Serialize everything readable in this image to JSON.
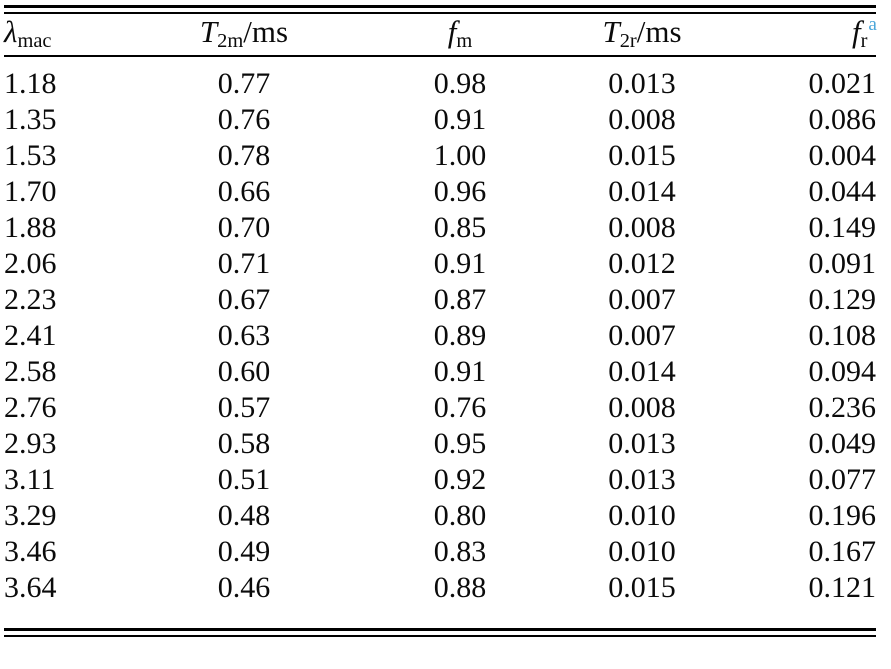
{
  "colors": {
    "text": "#0b0b0b",
    "rule": "#000000",
    "footnote_marker": "#4ba6d9"
  },
  "table": {
    "header": {
      "columns": [
        {
          "symbol": "λ",
          "subscript": "mac",
          "suffix": "",
          "superscript": ""
        },
        {
          "symbol": "T",
          "subscript": "2m",
          "suffix": "/ms",
          "superscript": ""
        },
        {
          "symbol": "f",
          "subscript": "m",
          "suffix": "",
          "superscript": ""
        },
        {
          "symbol": "T",
          "subscript": "2r",
          "suffix": "/ms",
          "superscript": ""
        },
        {
          "symbol": "f",
          "subscript": "r",
          "suffix": "",
          "superscript": "a"
        }
      ]
    },
    "rows": [
      [
        "1.18",
        "0.77",
        "0.98",
        "0.013",
        "0.021"
      ],
      [
        "1.35",
        "0.76",
        "0.91",
        "0.008",
        "0.086"
      ],
      [
        "1.53",
        "0.78",
        "1.00",
        "0.015",
        "0.004"
      ],
      [
        "1.70",
        "0.66",
        "0.96",
        "0.014",
        "0.044"
      ],
      [
        "1.88",
        "0.70",
        "0.85",
        "0.008",
        "0.149"
      ],
      [
        "2.06",
        "0.71",
        "0.91",
        "0.012",
        "0.091"
      ],
      [
        "2.23",
        "0.67",
        "0.87",
        "0.007",
        "0.129"
      ],
      [
        "2.41",
        "0.63",
        "0.89",
        "0.007",
        "0.108"
      ],
      [
        "2.58",
        "0.60",
        "0.91",
        "0.014",
        "0.094"
      ],
      [
        "2.76",
        "0.57",
        "0.76",
        "0.008",
        "0.236"
      ],
      [
        "2.93",
        "0.58",
        "0.95",
        "0.013",
        "0.049"
      ],
      [
        "3.11",
        "0.51",
        "0.92",
        "0.013",
        "0.077"
      ],
      [
        "3.29",
        "0.48",
        "0.80",
        "0.010",
        "0.196"
      ],
      [
        "3.46",
        "0.49",
        "0.83",
        "0.010",
        "0.167"
      ],
      [
        "3.64",
        "0.46",
        "0.88",
        "0.015",
        "0.121"
      ]
    ]
  }
}
